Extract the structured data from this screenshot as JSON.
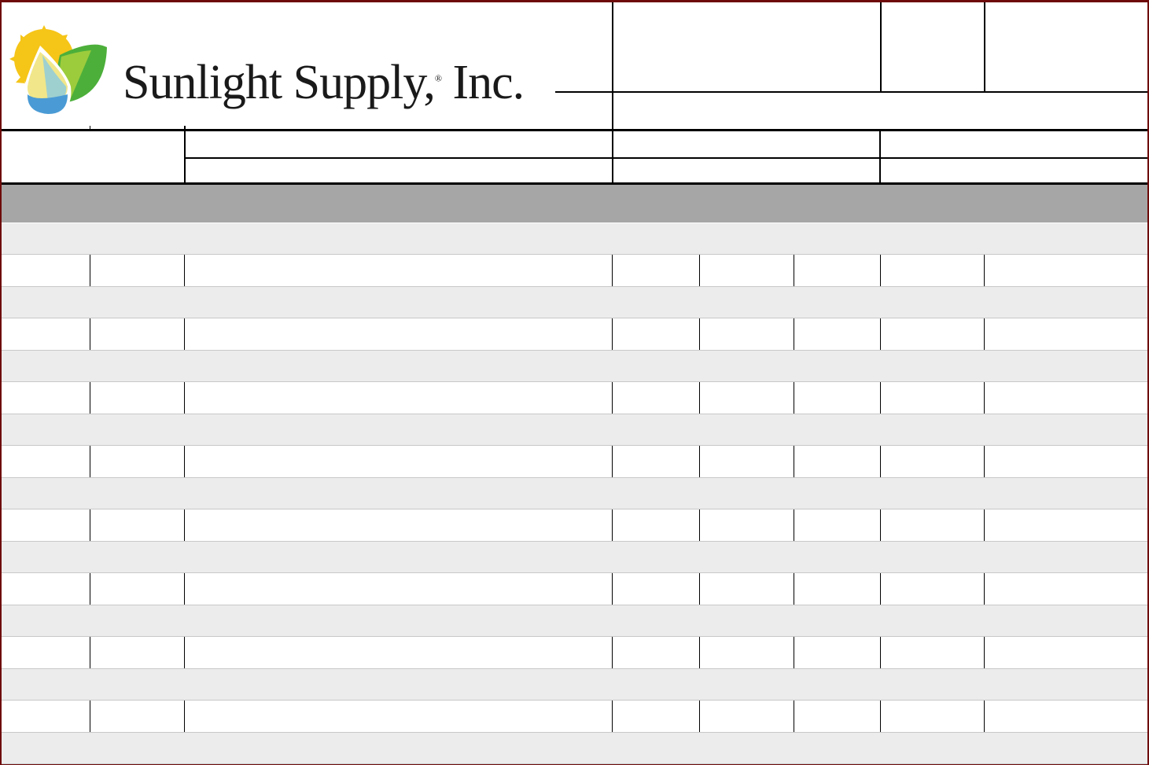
{
  "logo": {
    "company": "Sunlight Supply",
    "registered": "®",
    "suffix": " Inc.",
    "full_text": "Sunlight Supply, Inc."
  },
  "colors": {
    "border": "#6e0a0a",
    "header_band": "#a6a6a6",
    "section_row": "#ececec"
  },
  "table": {
    "row_pairs": 8
  }
}
